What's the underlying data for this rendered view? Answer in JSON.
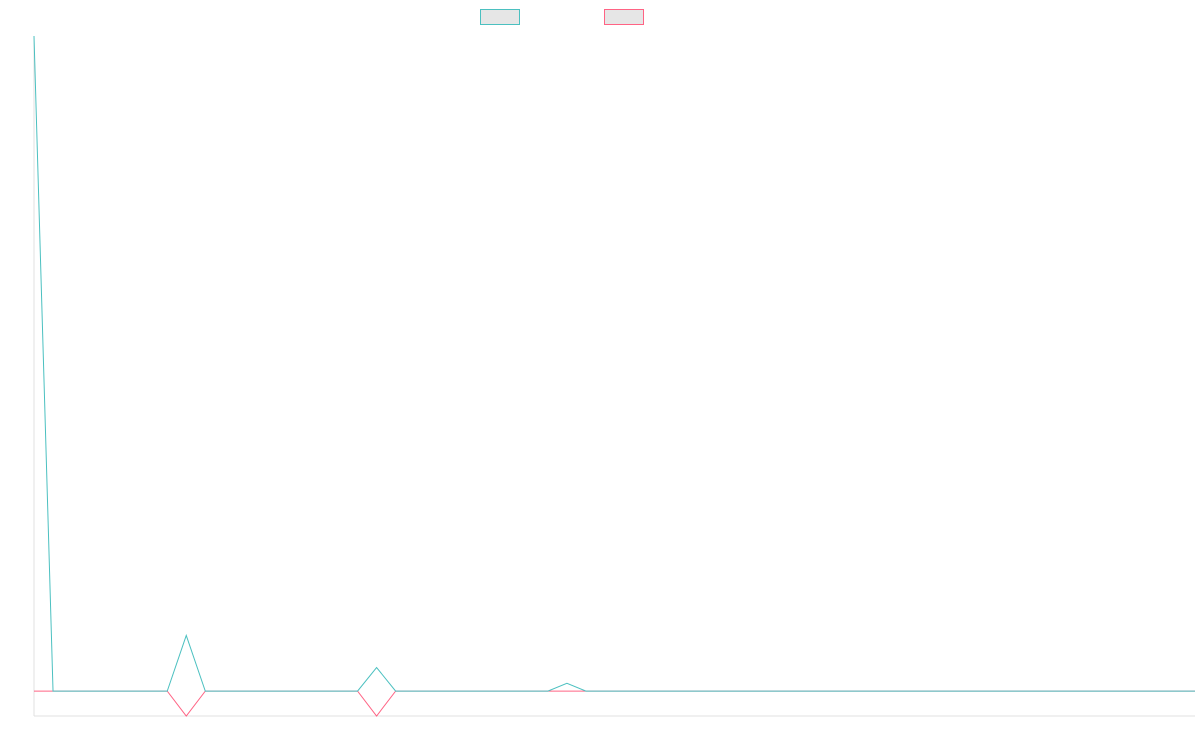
{
  "chart_data": {
    "type": "line",
    "x": [
      "",
      "",
      "",
      "",
      "",
      "",
      "",
      "",
      "",
      "",
      "",
      "",
      "",
      "",
      "",
      "",
      "",
      "",
      "",
      "",
      "",
      "",
      "",
      "",
      "",
      "",
      "",
      "",
      "",
      "",
      "",
      "",
      "",
      "",
      "",
      "",
      "",
      "",
      "",
      "",
      "",
      "",
      "",
      "",
      "",
      "",
      "",
      "",
      "",
      "",
      "",
      "",
      "",
      "",
      "",
      "",
      "",
      "",
      "",
      "",
      "",
      ""
    ],
    "series": [
      {
        "name": "",
        "color": "#4bc0c0",
        "values": [
          100,
          0,
          0,
          0,
          0,
          0,
          0,
          0,
          8.5,
          0,
          0,
          0,
          0,
          0,
          0,
          0,
          0,
          0,
          3.6,
          0,
          0,
          0,
          0,
          0,
          0,
          0,
          0,
          0,
          1.2,
          0,
          0,
          0,
          0,
          0,
          0,
          0,
          0,
          0,
          0,
          0,
          0,
          0,
          0,
          0,
          0,
          0,
          0,
          0,
          0,
          0,
          0,
          0,
          0,
          0,
          0,
          0,
          0,
          0,
          0,
          0,
          0,
          0
        ]
      },
      {
        "name": "",
        "color": "#ff6384",
        "values": [
          0,
          0,
          0,
          0,
          0,
          0,
          0,
          0,
          -3.8,
          0,
          0,
          0,
          0,
          0,
          0,
          0,
          0,
          0,
          -3.8,
          0,
          0,
          0,
          0,
          0,
          0,
          0,
          0,
          0,
          0,
          0,
          0,
          0,
          0,
          0,
          0,
          0,
          0,
          0,
          0,
          0,
          0,
          0,
          0,
          0,
          0,
          0,
          0,
          0,
          0,
          0,
          0,
          0,
          0,
          0,
          0,
          0,
          0,
          0,
          0,
          0,
          0,
          0
        ]
      }
    ],
    "ylim": [
      -3.8,
      100
    ],
    "grid": false,
    "legend": "top-center"
  }
}
